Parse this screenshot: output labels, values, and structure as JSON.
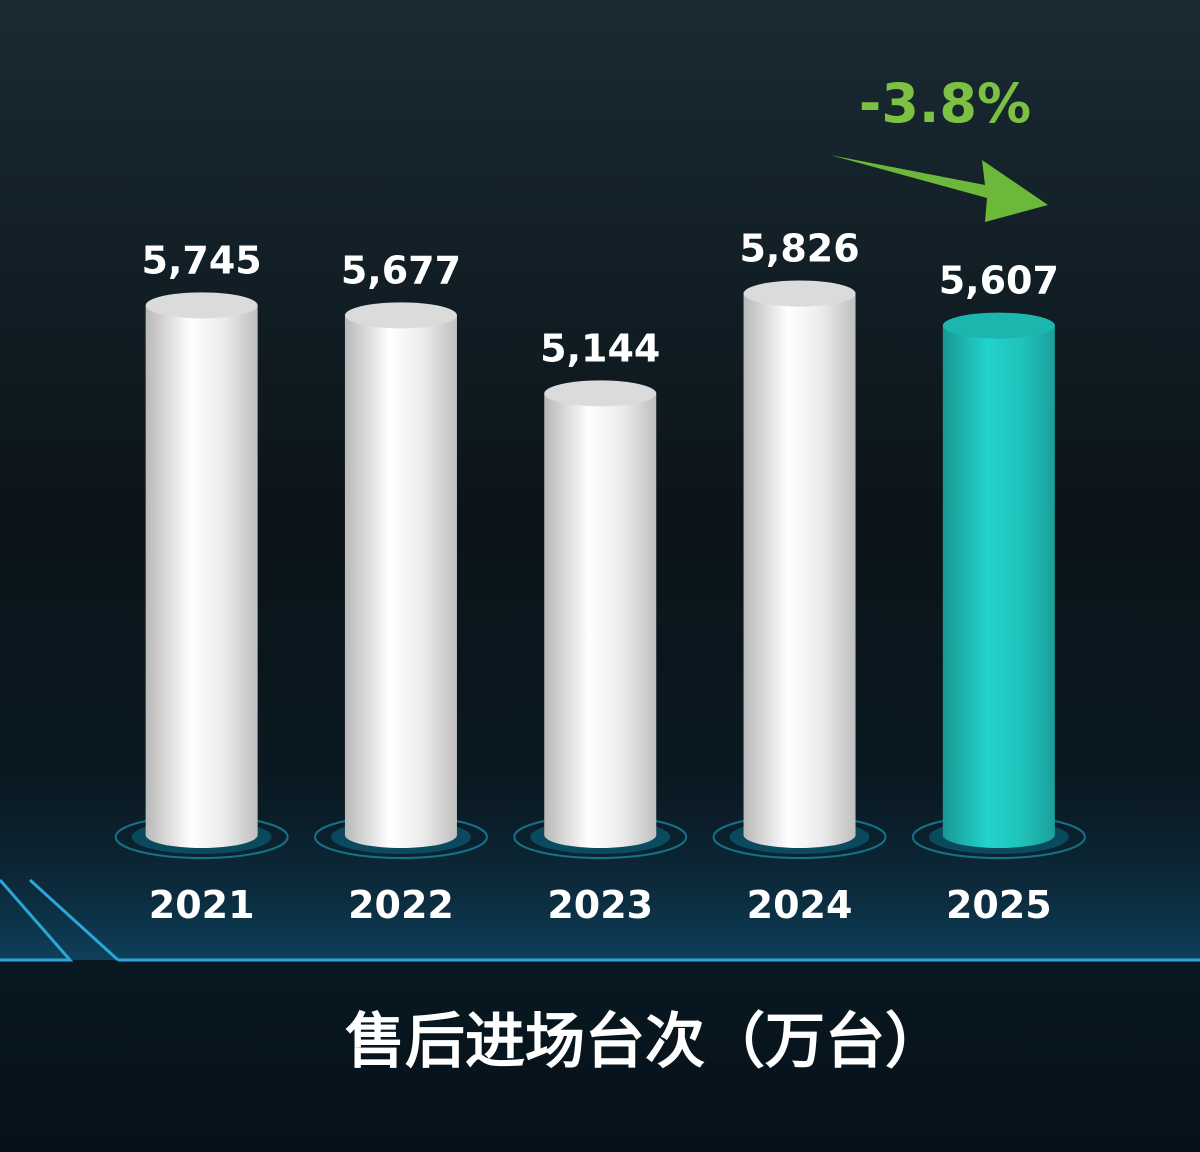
{
  "chart_data": {
    "type": "bar",
    "title": "售后进场台次（万台）",
    "annotation": "-3.8%",
    "annotation_color": "#7cc142",
    "categories": [
      "2021",
      "2022",
      "2023",
      "2024",
      "2025"
    ],
    "values": [
      5745,
      5677,
      5144,
      5826,
      5607
    ],
    "value_labels": [
      "5,745",
      "5,677",
      "5,144",
      "5,826",
      "5,607"
    ],
    "colors": [
      "#ffffff",
      "#ffffff",
      "#ffffff",
      "#ffffff",
      "#22d4cc"
    ],
    "ylim": [
      2130,
      6000
    ]
  }
}
